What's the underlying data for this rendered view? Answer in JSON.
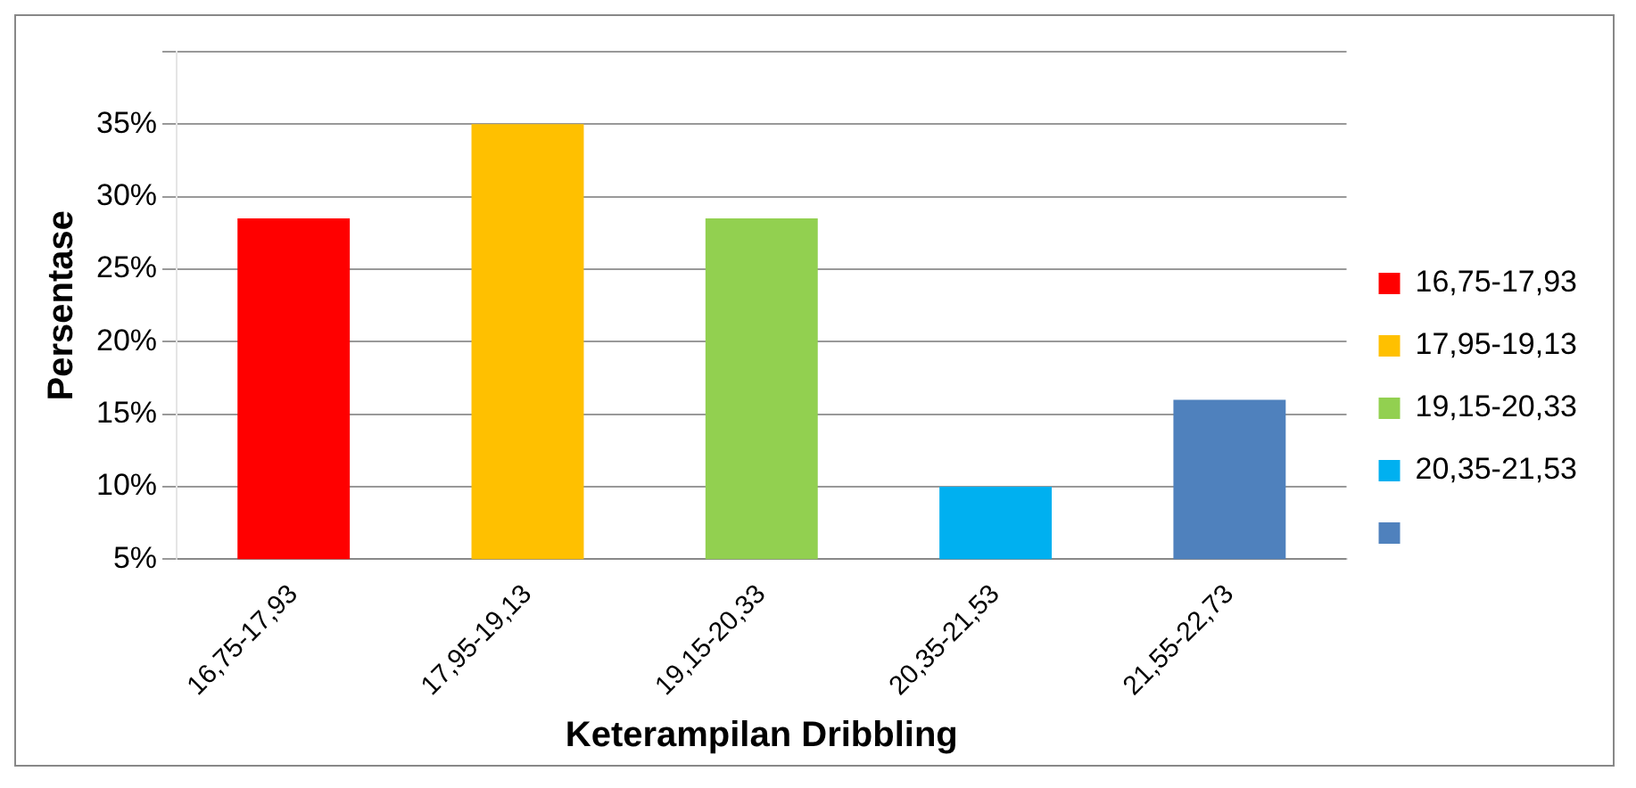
{
  "chart_data": {
    "type": "bar",
    "xlabel": "Keterampilan Dribbling",
    "ylabel": "Persentase",
    "categories": [
      "16,75-17,93",
      "17,95-19,13",
      "19,15-20,33",
      "20,35-21,53",
      "21,55-22,73"
    ],
    "series": [
      {
        "name": "16,75-17,93",
        "color": "#ff0000",
        "values": [
          28.5,
          null,
          null,
          null,
          null
        ]
      },
      {
        "name": "17,95-19,13",
        "color": "#ffc000",
        "values": [
          null,
          35,
          null,
          null,
          null
        ]
      },
      {
        "name": "19,15-20,33",
        "color": "#92d050",
        "values": [
          null,
          null,
          28.5,
          null,
          null
        ]
      },
      {
        "name": "20,35-21,53",
        "color": "#00b0f0",
        "values": [
          null,
          null,
          null,
          10,
          null
        ]
      },
      {
        "color": "#4f81bd",
        "values": [
          null,
          null,
          null,
          null,
          16
        ]
      }
    ],
    "ylim": [
      5,
      40
    ],
    "yticks": [
      {
        "value": 5,
        "label": "5%"
      },
      {
        "value": 10,
        "label": "10%"
      },
      {
        "value": 15,
        "label": "15%"
      },
      {
        "value": 20,
        "label": "20%"
      },
      {
        "value": 25,
        "label": "25%"
      },
      {
        "value": 30,
        "label": "30%"
      },
      {
        "value": 35,
        "label": "35%"
      },
      {
        "value": 40,
        "label": null
      }
    ],
    "grid": "y",
    "legend": "right"
  }
}
